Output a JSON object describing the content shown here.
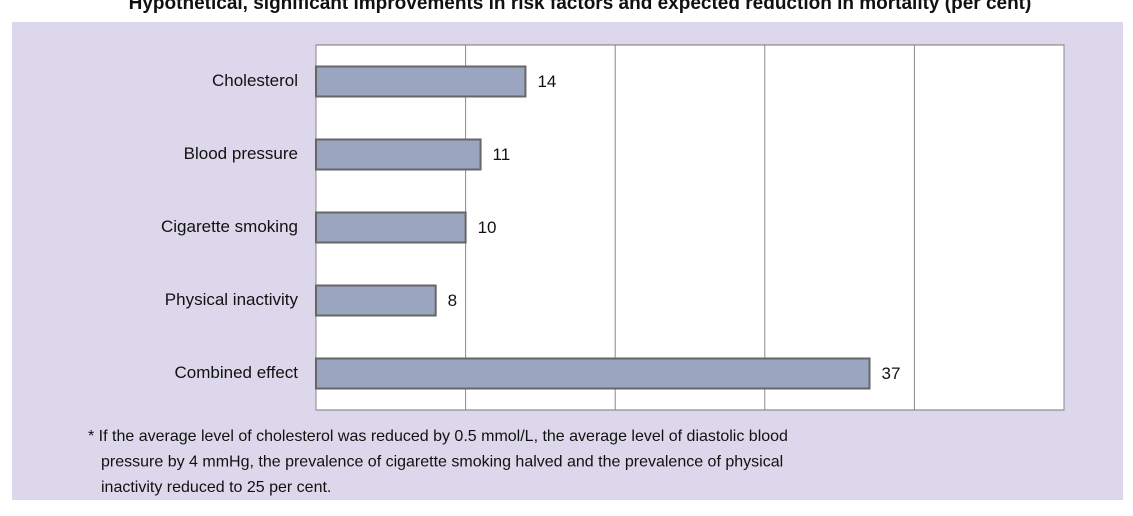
{
  "chart_data": {
    "type": "bar",
    "orientation": "horizontal",
    "title": "Hypothetical, significant improvements in risk factors and expected reduction in mortality (per cent)",
    "categories": [
      "Cholesterol",
      "Blood pressure",
      "Cigarette smoking",
      "Physical inactivity",
      "Combined effect"
    ],
    "values": [
      14,
      11,
      10,
      8,
      37
    ],
    "color": "#9aa5c0",
    "xlim": [
      0,
      50
    ],
    "xticks": [
      0,
      10,
      20,
      30,
      40,
      50
    ],
    "grid": true,
    "footnote": [
      "* If the average level of cholesterol was reduced by 0.5 mmol/L, the average level of diastolic blood",
      "pressure by 4 mmHg, the prevalence of cigarette smoking halved and the prevalence of physical",
      "inactivity reduced to 25 per cent."
    ]
  }
}
